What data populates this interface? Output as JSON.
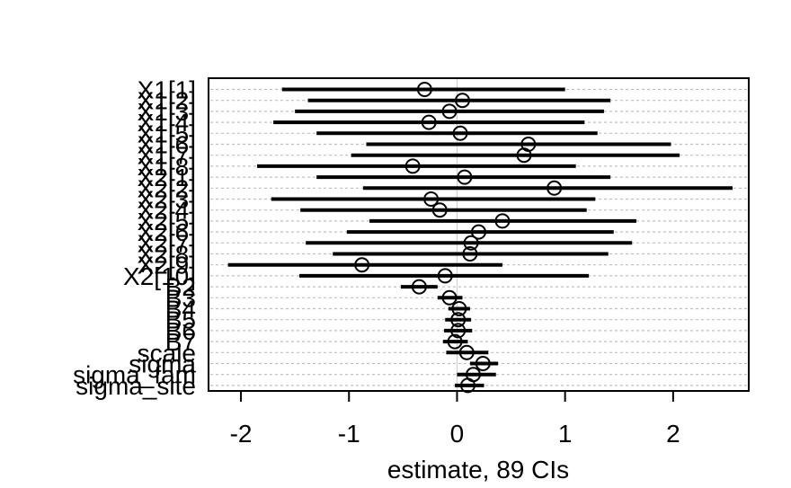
{
  "chart_data": {
    "type": "interval",
    "title": "",
    "xlabel": "estimate, 89 CIs",
    "xlim": [
      -2.3,
      2.7
    ],
    "xticks": [
      {
        "value": -2,
        "label": "-2"
      },
      {
        "value": -1,
        "label": "-1"
      },
      {
        "value": 0,
        "label": "0"
      },
      {
        "value": 1,
        "label": "1"
      },
      {
        "value": 2,
        "label": "2"
      }
    ],
    "grid": "dotted horizontal",
    "colors": {
      "line": "#000000",
      "grid": "#bfbfbf",
      "zero": "#cccccc",
      "background": "#ffffff"
    },
    "rows": [
      {
        "label": "X1[1]",
        "estimate": -0.3,
        "lower": -1.62,
        "upper": 1.0
      },
      {
        "label": "X1[2]",
        "estimate": 0.05,
        "lower": -1.38,
        "upper": 1.42
      },
      {
        "label": "X1[3]",
        "estimate": -0.07,
        "lower": -1.5,
        "upper": 1.36
      },
      {
        "label": "X1[4]",
        "estimate": -0.26,
        "lower": -1.7,
        "upper": 1.18
      },
      {
        "label": "X1[5]",
        "estimate": 0.03,
        "lower": -1.3,
        "upper": 1.3
      },
      {
        "label": "X1[6]",
        "estimate": 0.66,
        "lower": -0.84,
        "upper": 1.98
      },
      {
        "label": "X1[7]",
        "estimate": 0.62,
        "lower": -0.98,
        "upper": 2.06
      },
      {
        "label": "X1[8]",
        "estimate": -0.41,
        "lower": -1.85,
        "upper": 1.1
      },
      {
        "label": "X2[1]",
        "estimate": 0.07,
        "lower": -1.3,
        "upper": 1.42
      },
      {
        "label": "X2[2]",
        "estimate": 0.9,
        "lower": -0.87,
        "upper": 2.55
      },
      {
        "label": "X2[3]",
        "estimate": -0.24,
        "lower": -1.72,
        "upper": 1.28
      },
      {
        "label": "X2[4]",
        "estimate": -0.16,
        "lower": -1.45,
        "upper": 1.2
      },
      {
        "label": "X2[5]",
        "estimate": 0.42,
        "lower": -0.81,
        "upper": 1.66
      },
      {
        "label": "X2[6]",
        "estimate": 0.2,
        "lower": -1.02,
        "upper": 1.45
      },
      {
        "label": "X2[7]",
        "estimate": 0.13,
        "lower": -1.4,
        "upper": 1.62
      },
      {
        "label": "X2[8]",
        "estimate": 0.12,
        "lower": -1.15,
        "upper": 1.4
      },
      {
        "label": "X2[9]",
        "estimate": -0.88,
        "lower": -2.12,
        "upper": 0.42
      },
      {
        "label": "X2[10]",
        "estimate": -0.11,
        "lower": -1.46,
        "upper": 1.22
      },
      {
        "label": "B2",
        "estimate": -0.35,
        "lower": -0.52,
        "upper": -0.18
      },
      {
        "label": "B3",
        "estimate": -0.07,
        "lower": -0.18,
        "upper": 0.05
      },
      {
        "label": "B4",
        "estimate": 0.02,
        "lower": -0.08,
        "upper": 0.12
      },
      {
        "label": "B5",
        "estimate": 0.01,
        "lower": -0.11,
        "upper": 0.13
      },
      {
        "label": "B6",
        "estimate": 0.01,
        "lower": -0.12,
        "upper": 0.14
      },
      {
        "label": "B7",
        "estimate": -0.02,
        "lower": -0.13,
        "upper": 0.1
      },
      {
        "label": "scale",
        "estimate": 0.09,
        "lower": -0.1,
        "upper": 0.29
      },
      {
        "label": "sigma",
        "estimate": 0.24,
        "lower": 0.12,
        "upper": 0.38
      },
      {
        "label": "sigma_fam",
        "estimate": 0.15,
        "lower": 0.0,
        "upper": 0.36
      },
      {
        "label": "sigma_site",
        "estimate": 0.1,
        "lower": -0.02,
        "upper": 0.25
      }
    ]
  }
}
